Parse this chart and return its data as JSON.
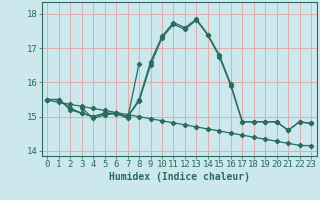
{
  "title": "",
  "xlabel": "Humidex (Indice chaleur)",
  "xlim": [
    -0.5,
    23.5
  ],
  "ylim": [
    13.85,
    18.35
  ],
  "yticks": [
    14,
    15,
    16,
    17,
    18
  ],
  "xticks": [
    0,
    1,
    2,
    3,
    4,
    5,
    6,
    7,
    8,
    9,
    10,
    11,
    12,
    13,
    14,
    15,
    16,
    17,
    18,
    19,
    20,
    21,
    22,
    23
  ],
  "bg_color": "#cce8ec",
  "grid_color": "#dbaeb0",
  "line_color": "#2a6b60",
  "line_width": 0.9,
  "marker_size": 2.2,
  "xlabel_fontsize": 7,
  "tick_fontsize": 6.5,
  "series": {
    "main": {
      "x": [
        0,
        1,
        2,
        3,
        4,
        5,
        6,
        7,
        8,
        9,
        10,
        11,
        12,
        13,
        14,
        15,
        16,
        17,
        18,
        19,
        20,
        21,
        22,
        23
      ],
      "y": [
        15.5,
        15.5,
        15.2,
        15.1,
        15.0,
        15.1,
        15.1,
        15.0,
        15.5,
        16.6,
        17.35,
        17.75,
        17.6,
        17.85,
        17.4,
        16.8,
        15.95,
        14.85,
        14.85,
        14.85,
        14.85,
        14.6,
        14.85,
        14.8
      ]
    },
    "flat": {
      "x": [
        0,
        1,
        2,
        3,
        4,
        5,
        6,
        7,
        8,
        9,
        10,
        11,
        12,
        13,
        14,
        15,
        16,
        17,
        18,
        19,
        20,
        21,
        22,
        23
      ],
      "y": [
        15.48,
        15.42,
        15.36,
        15.3,
        15.24,
        15.18,
        15.12,
        15.06,
        15.0,
        14.94,
        14.88,
        14.82,
        14.76,
        14.7,
        14.64,
        14.58,
        14.52,
        14.46,
        14.4,
        14.34,
        14.28,
        14.22,
        14.16,
        14.15
      ]
    },
    "mid": {
      "x": [
        0,
        1,
        2,
        3,
        4,
        5,
        6,
        7,
        8,
        9,
        10,
        11,
        12,
        13,
        14,
        15,
        16,
        17,
        18,
        19,
        20,
        21,
        22,
        23
      ],
      "y": [
        15.5,
        15.5,
        15.25,
        15.1,
        15.0,
        15.1,
        15.08,
        15.0,
        15.45,
        16.5,
        17.3,
        17.7,
        17.55,
        17.82,
        17.38,
        16.75,
        15.9,
        14.85,
        14.85,
        14.85,
        14.85,
        14.6,
        14.85,
        14.8
      ]
    },
    "bump": {
      "x": [
        3,
        4,
        5,
        6,
        7,
        8
      ],
      "y": [
        15.25,
        14.95,
        15.05,
        15.1,
        14.95,
        16.55
      ]
    }
  }
}
